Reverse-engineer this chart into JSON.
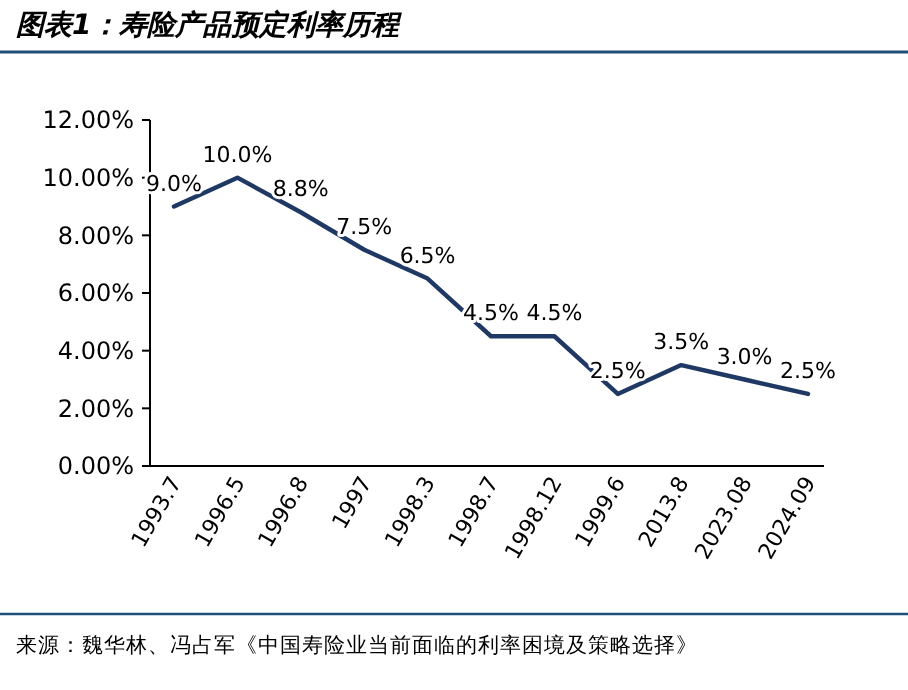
{
  "chart_data": {
    "type": "line",
    "title": "图表1：寿险产品预定利率历程",
    "categories": [
      "1993.7",
      "1996.5",
      "1996.8",
      "1997",
      "1998.3",
      "1998.7",
      "1998.12",
      "1999.6",
      "2013.8",
      "2023.08",
      "2024.09"
    ],
    "values": [
      9.0,
      10.0,
      8.8,
      7.5,
      6.5,
      4.5,
      4.5,
      2.5,
      3.5,
      3.0,
      2.5
    ],
    "value_labels": [
      "9.0%",
      "10.0%",
      "8.8%",
      "7.5%",
      "6.5%",
      "4.5%",
      "4.5%",
      "2.5%",
      "3.5%",
      "3.0%",
      "2.5%"
    ],
    "color": "#1f3864",
    "ylim": [
      0,
      12
    ],
    "yticks": [
      {
        "value": 0,
        "label": "0.00%"
      },
      {
        "value": 2,
        "label": "2.00%"
      },
      {
        "value": 4,
        "label": "4.00%"
      },
      {
        "value": 6,
        "label": "6.00%"
      },
      {
        "value": 8,
        "label": "8.00%"
      },
      {
        "value": 10,
        "label": "10.00%"
      },
      {
        "value": 12,
        "label": "12.00%"
      }
    ],
    "annotations": [
      "来源：魏华林、冯占军《中国寿险业当前面临的利率困境及策略选择》"
    ]
  }
}
